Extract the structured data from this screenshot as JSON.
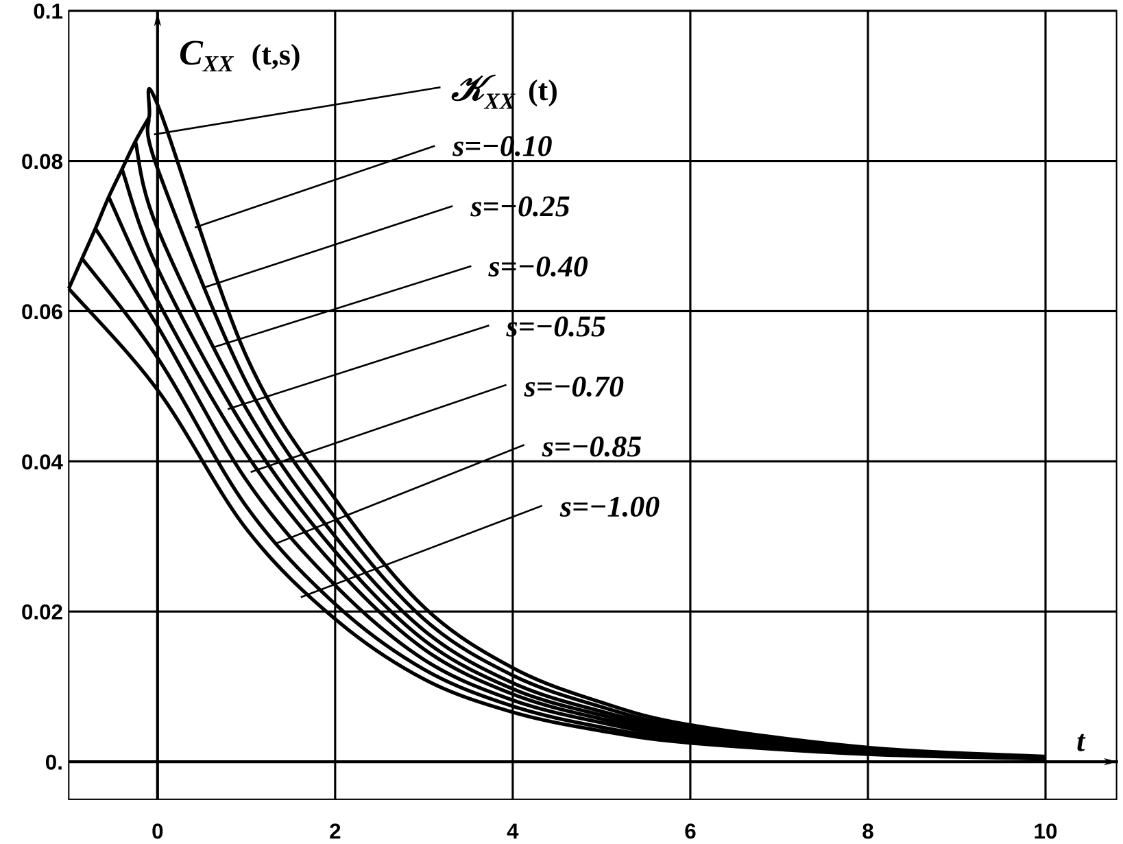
{
  "chart_data": {
    "type": "line",
    "x_label": "t",
    "y_label": {
      "main": "C",
      "sub": "XX",
      "args": "(t,s)"
    },
    "xlim": [
      -1,
      10.8
    ],
    "ylim": [
      -0.005,
      0.1
    ],
    "xticks": [
      0,
      2,
      4,
      6,
      8,
      10
    ],
    "yticks": [
      {
        "value": 0,
        "label": "0."
      },
      0.02,
      0.04,
      0.06,
      0.08,
      0.1
    ],
    "grid": true,
    "color": "#000000",
    "series": [
      {
        "name": "𝒦",
        "subscript": "XX",
        "argument": "(t)",
        "color": "#000000",
        "x": [
          -1,
          -0.85,
          -0.7,
          -0.55,
          -0.4,
          -0.25,
          -0.1,
          0,
          1,
          2,
          3,
          4,
          5,
          6,
          8,
          10
        ],
        "values": [
          0.063,
          0.067,
          0.071,
          0.0752,
          0.0789,
          0.0826,
          0.0857,
          0.0875,
          0.054,
          0.035,
          0.0206,
          0.0125,
          0.0079,
          0.0049,
          0.0019,
          0.0007
        ]
      },
      {
        "name": "s=−0.10",
        "color": "#000000",
        "x": [
          -0.1,
          0,
          1,
          2,
          3,
          4,
          5,
          6,
          8,
          10
        ],
        "values": [
          0.0857,
          0.079,
          0.0505,
          0.0325,
          0.019,
          0.0115,
          0.0073,
          0.0045,
          0.0018,
          0.00066
        ]
      },
      {
        "name": "s=−0.25",
        "color": "#000000",
        "x": [
          -0.25,
          0,
          1,
          2,
          3,
          4,
          5,
          6,
          8,
          10
        ],
        "values": [
          0.0826,
          0.071,
          0.047,
          0.03,
          0.0175,
          0.0105,
          0.0067,
          0.0042,
          0.0016,
          0.0006
        ]
      },
      {
        "name": "s=−0.40",
        "color": "#000000",
        "x": [
          -0.4,
          0,
          1,
          2,
          3,
          4,
          5,
          6,
          8,
          10
        ],
        "values": [
          0.0789,
          0.0657,
          0.044,
          0.028,
          0.0162,
          0.0097,
          0.0062,
          0.0038,
          0.0015,
          0.00055
        ]
      },
      {
        "name": "s=−0.55",
        "color": "#000000",
        "x": [
          -0.55,
          0,
          1,
          2,
          3,
          4,
          5,
          6,
          8,
          10
        ],
        "values": [
          0.0752,
          0.0614,
          0.041,
          0.026,
          0.015,
          0.009,
          0.0057,
          0.0035,
          0.0014,
          0.0005
        ]
      },
      {
        "name": "s=−0.70",
        "color": "#000000",
        "x": [
          -0.7,
          0,
          1,
          2,
          3,
          4,
          5,
          6,
          8,
          10
        ],
        "values": [
          0.071,
          0.058,
          0.0375,
          0.0235,
          0.0136,
          0.0082,
          0.0052,
          0.0032,
          0.0013,
          0.00047
        ]
      },
      {
        "name": "s=−0.85",
        "color": "#000000",
        "x": [
          -0.85,
          0,
          1,
          2,
          3,
          4,
          5,
          6,
          8,
          10
        ],
        "values": [
          0.067,
          0.0538,
          0.034,
          0.021,
          0.0123,
          0.0074,
          0.0046,
          0.0029,
          0.0011,
          0.00043
        ]
      },
      {
        "name": "s=−1.00",
        "color": "#000000",
        "x": [
          -1,
          0,
          1,
          2,
          3,
          4,
          5,
          6,
          8,
          10
        ],
        "values": [
          0.063,
          0.0495,
          0.031,
          0.019,
          0.011,
          0.0066,
          0.0041,
          0.0025,
          0.001,
          0.0004
        ]
      }
    ]
  }
}
